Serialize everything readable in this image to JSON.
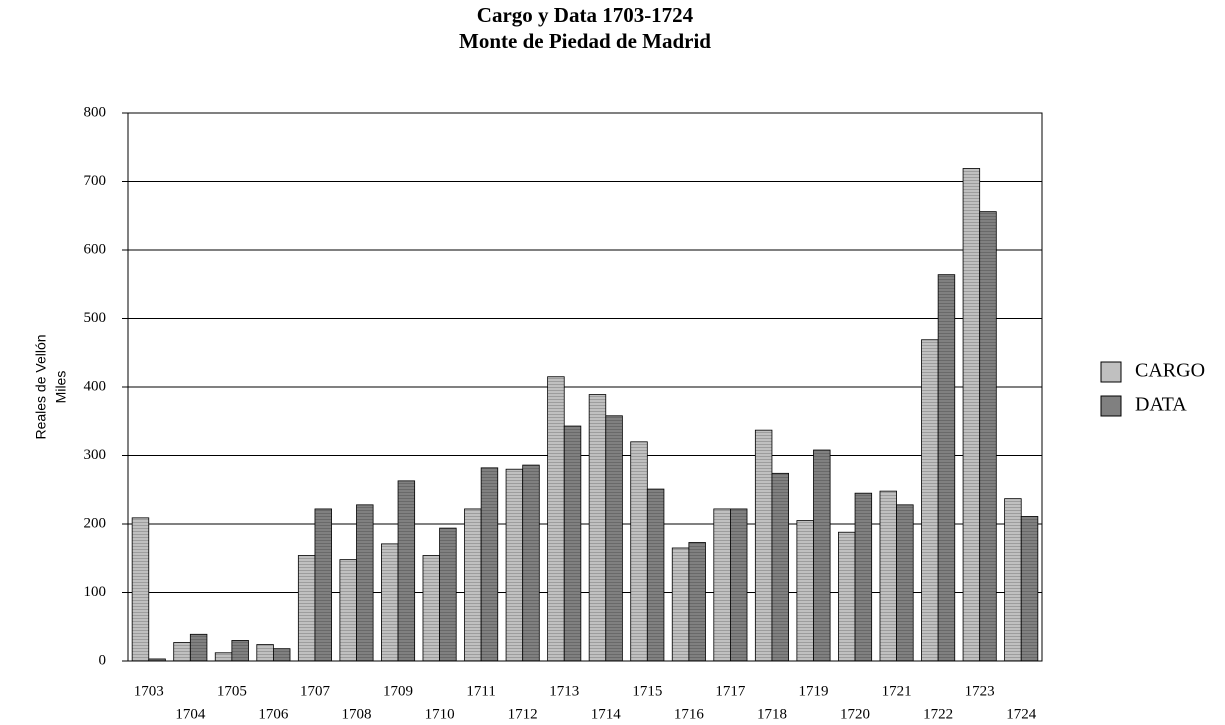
{
  "chart_data": {
    "type": "bar",
    "title": "Cargo y Data 1703-1724",
    "subtitle": "Monte de Piedad de Madrid",
    "ylabel": [
      "Reales de Vellón",
      "Miles"
    ],
    "categories": [
      "1703",
      "1704",
      "1705",
      "1706",
      "1707",
      "1708",
      "1709",
      "1710",
      "1711",
      "1712",
      "1713",
      "1714",
      "1715",
      "1716",
      "1717",
      "1718",
      "1719",
      "1720",
      "1721",
      "1722",
      "1723",
      "1724"
    ],
    "series": [
      {
        "name": "CARGO",
        "color": "#c0c0c0",
        "values": [
          209,
          27,
          12,
          24,
          154,
          148,
          171,
          154,
          222,
          280,
          415,
          389,
          320,
          165,
          222,
          337,
          205,
          188,
          248,
          469,
          719,
          237
        ]
      },
      {
        "name": "DATA",
        "color": "#808080",
        "values": [
          3,
          39,
          30,
          18,
          222,
          228,
          263,
          194,
          282,
          286,
          343,
          358,
          251,
          173,
          222,
          274,
          308,
          245,
          228,
          564,
          656,
          211
        ]
      }
    ],
    "ylim": [
      0,
      800
    ],
    "yticks": [
      0,
      100,
      200,
      300,
      400,
      500,
      600,
      700,
      800
    ],
    "grid": true,
    "legend": "right"
  }
}
